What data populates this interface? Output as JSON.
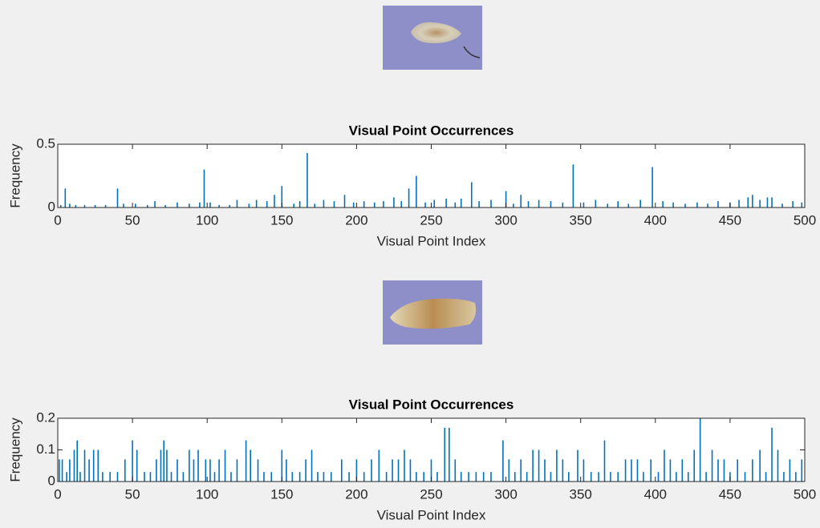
{
  "chart_data": [
    {
      "type": "bar",
      "title": "Visual Point Occurrences",
      "xlabel": "Visual Point Index",
      "ylabel": "Frequency",
      "color": "#0072bd",
      "xlim": [
        0,
        500
      ],
      "ylim": [
        0,
        0.5
      ],
      "xticks": [
        0,
        50,
        100,
        150,
        200,
        250,
        300,
        350,
        400,
        450,
        500
      ],
      "yticks": [
        0,
        0.5
      ],
      "x": [
        2,
        5,
        8,
        12,
        18,
        25,
        32,
        40,
        44,
        52,
        60,
        65,
        72,
        80,
        88,
        95,
        98,
        102,
        108,
        115,
        120,
        128,
        133,
        140,
        145,
        150,
        158,
        162,
        167,
        172,
        178,
        185,
        192,
        198,
        205,
        212,
        218,
        225,
        230,
        235,
        240,
        246,
        252,
        260,
        266,
        270,
        277,
        282,
        290,
        300,
        305,
        310,
        315,
        322,
        330,
        338,
        345,
        352,
        360,
        368,
        375,
        382,
        390,
        398,
        405,
        412,
        420,
        428,
        435,
        442,
        450,
        456,
        462,
        465,
        470,
        475,
        478,
        485,
        492,
        498
      ],
      "values": [
        0.02,
        0.15,
        0.03,
        0.02,
        0.02,
        0.02,
        0.02,
        0.15,
        0.03,
        0.03,
        0.02,
        0.05,
        0.02,
        0.04,
        0.03,
        0.04,
        0.3,
        0.04,
        0.02,
        0.02,
        0.06,
        0.03,
        0.06,
        0.05,
        0.1,
        0.17,
        0.03,
        0.05,
        0.43,
        0.03,
        0.06,
        0.05,
        0.1,
        0.04,
        0.05,
        0.04,
        0.05,
        0.08,
        0.05,
        0.15,
        0.25,
        0.04,
        0.06,
        0.07,
        0.04,
        0.07,
        0.2,
        0.05,
        0.06,
        0.13,
        0.03,
        0.1,
        0.05,
        0.06,
        0.05,
        0.04,
        0.34,
        0.04,
        0.06,
        0.03,
        0.05,
        0.03,
        0.06,
        0.32,
        0.05,
        0.04,
        0.03,
        0.04,
        0.03,
        0.05,
        0.04,
        0.06,
        0.08,
        0.1,
        0.06,
        0.08,
        0.08,
        0.03,
        0.05,
        0.04
      ]
    },
    {
      "type": "bar",
      "title": "Visual Point Occurrences",
      "xlabel": "Visual Point Index",
      "ylabel": "Frequency",
      "color": "#0072bd",
      "xlim": [
        0,
        500
      ],
      "ylim": [
        0,
        0.2
      ],
      "xticks": [
        0,
        50,
        100,
        150,
        200,
        250,
        300,
        350,
        400,
        450,
        500
      ],
      "yticks": [
        0,
        0.1,
        0.2
      ],
      "x": [
        1,
        3,
        6,
        8,
        11,
        13,
        15,
        18,
        21,
        24,
        27,
        30,
        35,
        40,
        45,
        50,
        53,
        58,
        62,
        66,
        69,
        71,
        73,
        76,
        80,
        84,
        88,
        91,
        94,
        99,
        102,
        105,
        108,
        112,
        116,
        120,
        126,
        129,
        134,
        138,
        143,
        150,
        153,
        157,
        162,
        166,
        170,
        174,
        178,
        183,
        190,
        195,
        200,
        205,
        210,
        215,
        220,
        224,
        228,
        232,
        236,
        240,
        245,
        250,
        254,
        259,
        262,
        266,
        270,
        275,
        280,
        285,
        290,
        298,
        302,
        306,
        310,
        314,
        318,
        322,
        326,
        330,
        334,
        338,
        342,
        348,
        352,
        357,
        362,
        366,
        370,
        375,
        380,
        384,
        388,
        392,
        397,
        402,
        406,
        410,
        414,
        418,
        422,
        426,
        430,
        434,
        438,
        442,
        446,
        450,
        455,
        460,
        465,
        470,
        474,
        478,
        482,
        486,
        490,
        494,
        498
      ],
      "values": [
        0.07,
        0.07,
        0.03,
        0.07,
        0.1,
        0.13,
        0.03,
        0.1,
        0.07,
        0.1,
        0.1,
        0.03,
        0.03,
        0.03,
        0.07,
        0.13,
        0.1,
        0.03,
        0.03,
        0.07,
        0.1,
        0.13,
        0.1,
        0.03,
        0.07,
        0.03,
        0.1,
        0.07,
        0.1,
        0.07,
        0.07,
        0.03,
        0.07,
        0.1,
        0.03,
        0.07,
        0.13,
        0.1,
        0.07,
        0.03,
        0.03,
        0.1,
        0.07,
        0.03,
        0.03,
        0.07,
        0.1,
        0.03,
        0.03,
        0.03,
        0.07,
        0.03,
        0.07,
        0.03,
        0.07,
        0.1,
        0.03,
        0.07,
        0.07,
        0.1,
        0.07,
        0.03,
        0.03,
        0.07,
        0.03,
        0.17,
        0.17,
        0.07,
        0.03,
        0.03,
        0.03,
        0.03,
        0.03,
        0.13,
        0.07,
        0.03,
        0.07,
        0.03,
        0.1,
        0.1,
        0.07,
        0.03,
        0.1,
        0.07,
        0.03,
        0.1,
        0.07,
        0.03,
        0.03,
        0.13,
        0.03,
        0.03,
        0.07,
        0.07,
        0.07,
        0.03,
        0.07,
        0.03,
        0.1,
        0.07,
        0.03,
        0.07,
        0.03,
        0.1,
        0.2,
        0.03,
        0.1,
        0.07,
        0.07,
        0.03,
        0.07,
        0.03,
        0.07,
        0.1,
        0.03,
        0.17,
        0.1,
        0.03,
        0.07,
        0.03,
        0.07
      ]
    }
  ]
}
